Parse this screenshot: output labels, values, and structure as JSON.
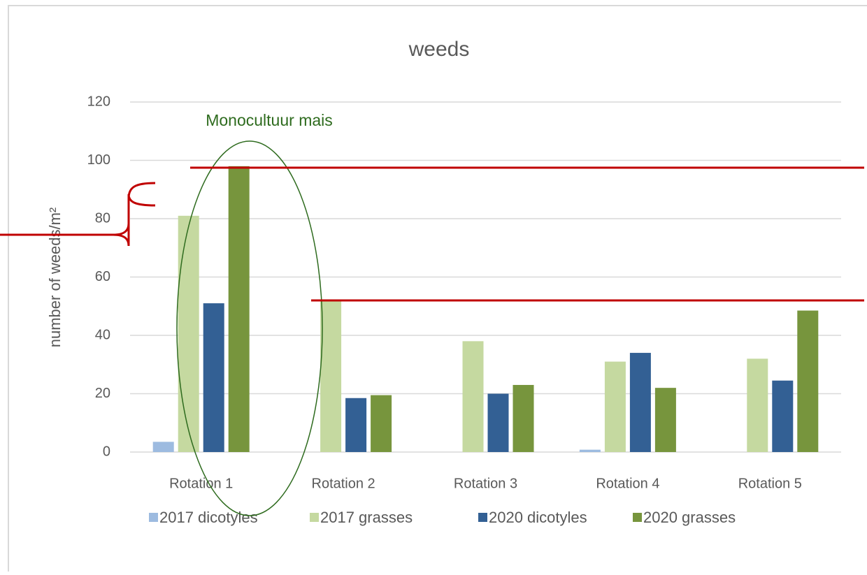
{
  "chart_data": {
    "type": "bar",
    "title": "weeds",
    "y_label": "number of weeds/m²",
    "annotation": "Monocultuur mais",
    "categories": [
      "Rotation 1",
      "Rotation 2",
      "Rotation 3",
      "Rotation 4",
      "Rotation 5"
    ],
    "series": [
      {
        "name": "2017 dicotyles",
        "color": "#9dbbe0",
        "values": [
          3.5,
          0,
          0,
          0.8,
          0
        ]
      },
      {
        "name": "2017 grasses",
        "color": "#c5d9a0",
        "values": [
          81,
          52,
          38,
          31,
          32
        ]
      },
      {
        "name": "2020 dicotyles",
        "color": "#336094",
        "values": [
          51,
          18.5,
          20,
          34,
          24.5
        ]
      },
      {
        "name": "2020 grasses",
        "color": "#77953d",
        "values": [
          98,
          19.5,
          23,
          22,
          48.5
        ]
      }
    ],
    "ylim": [
      0,
      120
    ],
    "yticks": [
      0,
      20,
      40,
      60,
      80,
      100,
      120
    ],
    "grid": true
  }
}
